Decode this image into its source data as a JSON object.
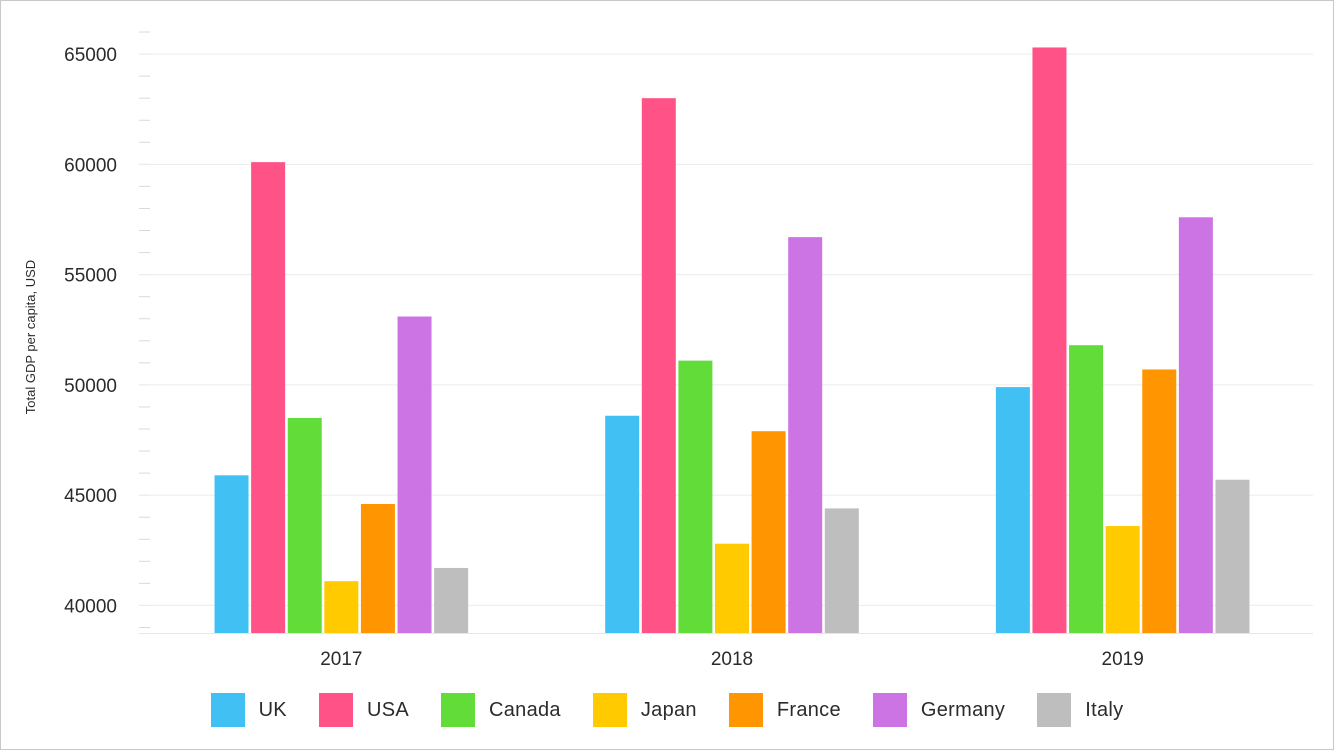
{
  "chart_data": {
    "type": "bar",
    "categories": [
      "2017",
      "2018",
      "2019"
    ],
    "series": [
      {
        "name": "UK",
        "color": "#41c0f3",
        "values": [
          45900,
          48600,
          49900
        ]
      },
      {
        "name": "USA",
        "color": "#ff5286",
        "values": [
          60100,
          63000,
          65300
        ]
      },
      {
        "name": "Canada",
        "color": "#62dc38",
        "values": [
          48500,
          51100,
          51800
        ]
      },
      {
        "name": "Japan",
        "color": "#ffcb00",
        "values": [
          41100,
          42800,
          43600
        ]
      },
      {
        "name": "France",
        "color": "#ff9500",
        "values": [
          44600,
          47900,
          50700
        ]
      },
      {
        "name": "Germany",
        "color": "#cd74e4",
        "values": [
          53100,
          56700,
          57600
        ]
      },
      {
        "name": "Italy",
        "color": "#bebebe",
        "values": [
          41700,
          44400,
          45700
        ]
      }
    ],
    "xlabel": "",
    "ylabel": "Total GDP per capita, USD",
    "ylim": [
      38750,
      66500
    ],
    "yticks": [
      40000,
      45000,
      50000,
      55000,
      60000,
      65000
    ],
    "grid": true,
    "legend": "bottom"
  }
}
